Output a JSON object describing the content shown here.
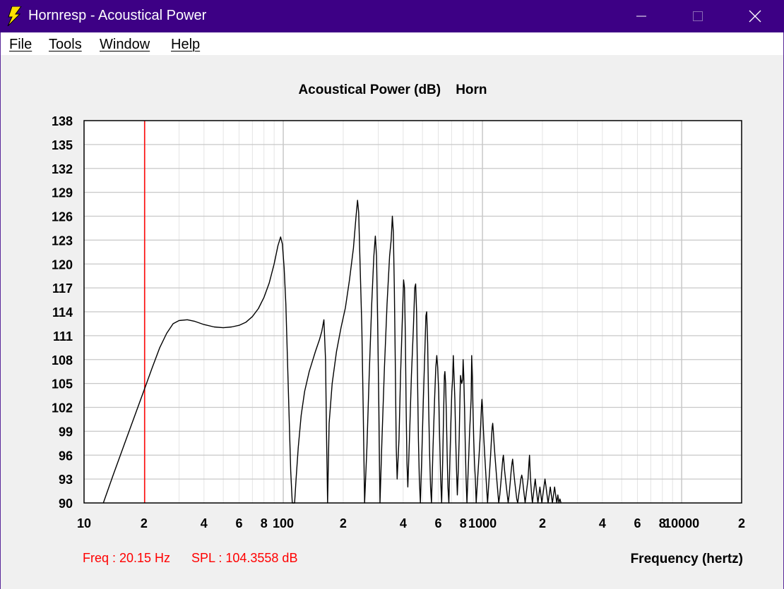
{
  "window": {
    "title": "Hornresp - Acoustical Power",
    "controls": {
      "minimize": "minimize",
      "maximize": "maximize",
      "close": "close"
    }
  },
  "menu": [
    {
      "label": "File"
    },
    {
      "label": "Tools"
    },
    {
      "label": "Window"
    },
    {
      "label": "Help"
    }
  ],
  "chart_data": {
    "type": "line",
    "title": "Acoustical Power (dB)    Horn",
    "xlabel": "Frequency (hertz)",
    "ylabel": "",
    "x_scale": "log",
    "xlim": [
      10,
      20000
    ],
    "ylim": [
      90,
      138
    ],
    "y_ticks": [
      90,
      93,
      96,
      99,
      102,
      105,
      108,
      111,
      114,
      117,
      120,
      123,
      126,
      129,
      132,
      135,
      138
    ],
    "x_tick_labels": [
      {
        "value": 10,
        "label": "10"
      },
      {
        "value": 20,
        "label": "2"
      },
      {
        "value": 40,
        "label": "4"
      },
      {
        "value": 60,
        "label": "6"
      },
      {
        "value": 80,
        "label": "8"
      },
      {
        "value": 100,
        "label": "100"
      },
      {
        "value": 200,
        "label": "2"
      },
      {
        "value": 400,
        "label": "4"
      },
      {
        "value": 600,
        "label": "6"
      },
      {
        "value": 800,
        "label": "8"
      },
      {
        "value": 1000,
        "label": "1000"
      },
      {
        "value": 2000,
        "label": "2"
      },
      {
        "value": 4000,
        "label": "4"
      },
      {
        "value": 6000,
        "label": "6"
      },
      {
        "value": 8000,
        "label": "8"
      },
      {
        "value": 10000,
        "label": "10000"
      },
      {
        "value": 20000,
        "label": "2"
      }
    ],
    "grid": true,
    "colors": {
      "curve": "#000000",
      "cursor": "#ff0000",
      "readout": "#ff0000",
      "grid": "#c8c8c8",
      "minor_grid": "#e4e4e4"
    },
    "cursor": {
      "freq": 20.15
    },
    "readout": {
      "freq": "Freq : 20.15 Hz",
      "spl": "SPL : 104.3558 dB"
    },
    "series": [
      {
        "points": [
          [
            12.5,
            90
          ],
          [
            14,
            93.5
          ],
          [
            16,
            97.5
          ],
          [
            18,
            101
          ],
          [
            20.15,
            104.36
          ],
          [
            22,
            107
          ],
          [
            24,
            109.5
          ],
          [
            26,
            111.3
          ],
          [
            28,
            112.5
          ],
          [
            30,
            112.9
          ],
          [
            33,
            113
          ],
          [
            36,
            112.8
          ],
          [
            40,
            112.4
          ],
          [
            45,
            112.1
          ],
          [
            50,
            112
          ],
          [
            55,
            112.1
          ],
          [
            60,
            112.3
          ],
          [
            65,
            112.7
          ],
          [
            70,
            113.4
          ],
          [
            75,
            114.4
          ],
          [
            80,
            115.8
          ],
          [
            85,
            117.6
          ],
          [
            90,
            120
          ],
          [
            94,
            122.3
          ],
          [
            97,
            123.4
          ],
          [
            99,
            122.5
          ],
          [
            101,
            119.5
          ],
          [
            103,
            115
          ],
          [
            105,
            108
          ],
          [
            107,
            101
          ],
          [
            109,
            94
          ],
          [
            111,
            90
          ],
          [
            114,
            90
          ],
          [
            116,
            93
          ],
          [
            119,
            97
          ],
          [
            123,
            101
          ],
          [
            128,
            104
          ],
          [
            135,
            106.5
          ],
          [
            145,
            109
          ],
          [
            152,
            110.5
          ],
          [
            156,
            111.5
          ],
          [
            160,
            113
          ],
          [
            163,
            108
          ],
          [
            165,
            98
          ],
          [
            167,
            90
          ],
          [
            170,
            100
          ],
          [
            176,
            105
          ],
          [
            185,
            109
          ],
          [
            195,
            112
          ],
          [
            205,
            114.5
          ],
          [
            215,
            118
          ],
          [
            225,
            122
          ],
          [
            232,
            126
          ],
          [
            236,
            128
          ],
          [
            239,
            126.5
          ],
          [
            243,
            120
          ],
          [
            248,
            112
          ],
          [
            252,
            102
          ],
          [
            256,
            90
          ],
          [
            263,
            97
          ],
          [
            270,
            106
          ],
          [
            278,
            115
          ],
          [
            285,
            121
          ],
          [
            290,
            123.5
          ],
          [
            294,
            121
          ],
          [
            298,
            112
          ],
          [
            302,
            102
          ],
          [
            306,
            90
          ],
          [
            313,
            98
          ],
          [
            322,
            107
          ],
          [
            332,
            115
          ],
          [
            342,
            121
          ],
          [
            348,
            123
          ],
          [
            353,
            126
          ],
          [
            357,
            124
          ],
          [
            361,
            117
          ],
          [
            365,
            108
          ],
          [
            369,
            97
          ],
          [
            373,
            93
          ],
          [
            381,
            98
          ],
          [
            388,
            106
          ],
          [
            396,
            113
          ],
          [
            402,
            118
          ],
          [
            406,
            117
          ],
          [
            410,
            111
          ],
          [
            414,
            102
          ],
          [
            418,
            95
          ],
          [
            422,
            92
          ],
          [
            430,
            98
          ],
          [
            440,
            106
          ],
          [
            450,
            112
          ],
          [
            457,
            117
          ],
          [
            462,
            117.5
          ],
          [
            467,
            114
          ],
          [
            472,
            106
          ],
          [
            477,
            98
          ],
          [
            482,
            93
          ],
          [
            488,
            90
          ],
          [
            496,
            96
          ],
          [
            505,
            103
          ],
          [
            514,
            109
          ],
          [
            520,
            113.5
          ],
          [
            525,
            114
          ],
          [
            531,
            110
          ],
          [
            537,
            102
          ],
          [
            543,
            96
          ],
          [
            549,
            92
          ],
          [
            555,
            90
          ],
          [
            565,
            97
          ],
          [
            575,
            103
          ],
          [
            583,
            107
          ],
          [
            590,
            108.5
          ],
          [
            596,
            107
          ],
          [
            603,
            104
          ],
          [
            610,
            98
          ],
          [
            617,
            93
          ],
          [
            624,
            90
          ],
          [
            631,
            95
          ],
          [
            638,
            101
          ],
          [
            644,
            106
          ],
          [
            648,
            106.5
          ],
          [
            653,
            105
          ],
          [
            659,
            101
          ],
          [
            665,
            96
          ],
          [
            671,
            92
          ],
          [
            678,
            90
          ],
          [
            686,
            95
          ],
          [
            694,
            100
          ],
          [
            702,
            104
          ],
          [
            708,
            105.5
          ],
          [
            714,
            108.5
          ],
          [
            720,
            106
          ],
          [
            727,
            103
          ],
          [
            734,
            98
          ],
          [
            741,
            94
          ],
          [
            748,
            91
          ],
          [
            756,
            94
          ],
          [
            764,
            98
          ],
          [
            771,
            103
          ],
          [
            776,
            106
          ],
          [
            781,
            105.5
          ],
          [
            787,
            105
          ],
          [
            795,
            105.5
          ],
          [
            800,
            108
          ],
          [
            806,
            106
          ],
          [
            813,
            102
          ],
          [
            820,
            97
          ],
          [
            828,
            93
          ],
          [
            836,
            90
          ],
          [
            845,
            93
          ],
          [
            854,
            96
          ],
          [
            862,
            99
          ],
          [
            870,
            101
          ],
          [
            877,
            103
          ],
          [
            883,
            108.5
          ],
          [
            889,
            106
          ],
          [
            896,
            102
          ],
          [
            904,
            98
          ],
          [
            912,
            95
          ],
          [
            921,
            93
          ],
          [
            930,
            90
          ],
          [
            940,
            92
          ],
          [
            951,
            94
          ],
          [
            962,
            96
          ],
          [
            972,
            98
          ],
          [
            981,
            100
          ],
          [
            988,
            102
          ],
          [
            994,
            103
          ],
          [
            1000,
            102
          ],
          [
            1008,
            100
          ],
          [
            1017,
            98
          ],
          [
            1027,
            96
          ],
          [
            1038,
            94
          ],
          [
            1049,
            92
          ],
          [
            1061,
            90
          ],
          [
            1073,
            92
          ],
          [
            1086,
            94
          ],
          [
            1099,
            96
          ],
          [
            1110,
            98
          ],
          [
            1119,
            99.5
          ],
          [
            1126,
            100
          ],
          [
            1134,
            99
          ],
          [
            1144,
            97.5
          ],
          [
            1155,
            96
          ],
          [
            1167,
            94.5
          ],
          [
            1180,
            93
          ],
          [
            1193,
            91.5
          ],
          [
            1207,
            90
          ],
          [
            1222,
            91
          ],
          [
            1237,
            92.5
          ],
          [
            1251,
            94
          ],
          [
            1264,
            95.5
          ],
          [
            1274,
            96
          ],
          [
            1283,
            95
          ],
          [
            1293,
            94
          ],
          [
            1305,
            93
          ],
          [
            1318,
            92
          ],
          [
            1332,
            91
          ],
          [
            1346,
            90
          ],
          [
            1361,
            91
          ],
          [
            1377,
            92.5
          ],
          [
            1393,
            94
          ],
          [
            1407,
            95
          ],
          [
            1418,
            95.5
          ],
          [
            1429,
            94.5
          ],
          [
            1441,
            93.5
          ],
          [
            1455,
            92.5
          ],
          [
            1470,
            91.5
          ],
          [
            1486,
            90.5
          ],
          [
            1503,
            90
          ],
          [
            1521,
            91
          ],
          [
            1540,
            92
          ],
          [
            1558,
            93
          ],
          [
            1575,
            93.5
          ],
          [
            1589,
            93
          ],
          [
            1604,
            92
          ],
          [
            1620,
            91
          ],
          [
            1638,
            90
          ],
          [
            1656,
            91
          ],
          [
            1675,
            92
          ],
          [
            1694,
            93
          ],
          [
            1711,
            95
          ],
          [
            1723,
            96
          ],
          [
            1735,
            94
          ],
          [
            1749,
            92.5
          ],
          [
            1765,
            91
          ],
          [
            1782,
            90
          ],
          [
            1800,
            91
          ],
          [
            1820,
            92
          ],
          [
            1840,
            93
          ],
          [
            1858,
            92
          ],
          [
            1878,
            91
          ],
          [
            1899,
            90
          ],
          [
            1921,
            91
          ],
          [
            1943,
            92
          ],
          [
            1965,
            91
          ],
          [
            1988,
            90
          ],
          [
            2011,
            91
          ],
          [
            2035,
            92
          ],
          [
            2060,
            93
          ],
          [
            2085,
            92
          ],
          [
            2110,
            91
          ],
          [
            2136,
            90
          ],
          [
            2163,
            91
          ],
          [
            2190,
            92
          ],
          [
            2217,
            91
          ],
          [
            2245,
            90
          ],
          [
            2274,
            91
          ],
          [
            2302,
            92
          ],
          [
            2331,
            91
          ],
          [
            2361,
            90
          ],
          [
            2390,
            91
          ],
          [
            2420,
            90
          ],
          [
            2450,
            90.5
          ],
          [
            2480,
            90
          ]
        ]
      }
    ]
  }
}
